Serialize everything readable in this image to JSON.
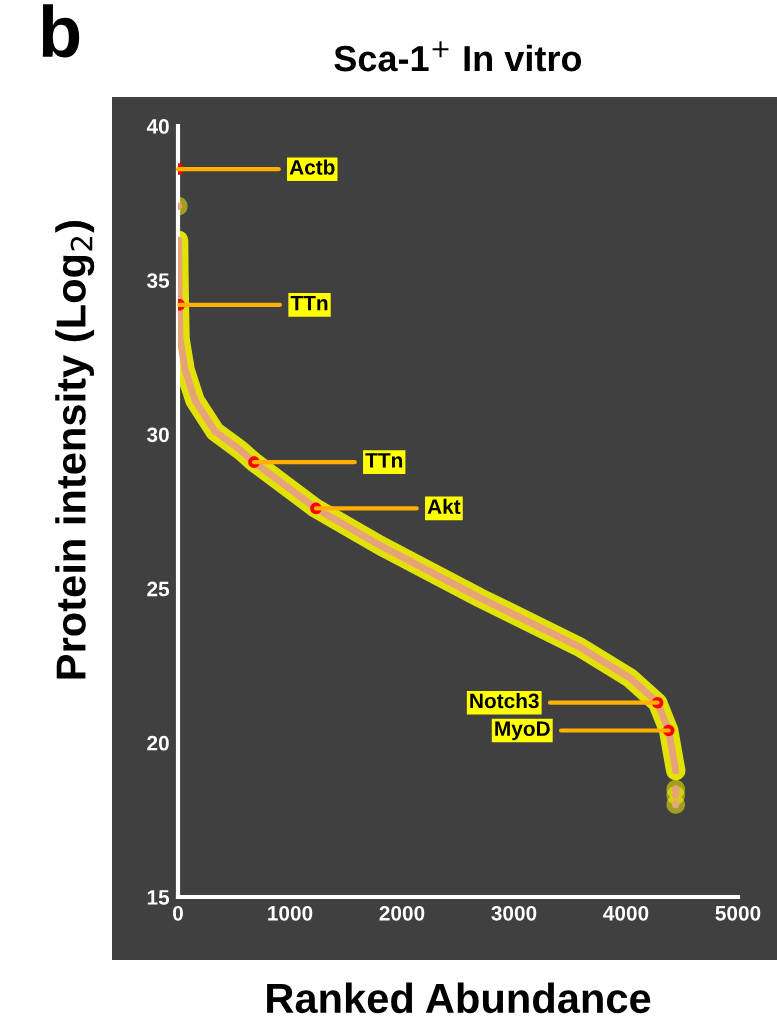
{
  "chart_data": {
    "type": "line",
    "title": "Sca-1$^{+}$ In vitro",
    "xlabel": "Ranked Abundance",
    "ylabel": "Protein intensity (Log$_{2}$)",
    "series": [
      {
        "color": "#e8a27a",
        "x": [
          5,
          8,
          12,
          18,
          63,
          152,
          330,
          554,
          679,
          1232,
          1804,
          2696,
          3589,
          4036,
          4282,
          4381,
          4444
        ],
        "values": [
          36.3,
          35.2,
          34.2,
          33.1,
          32.1,
          31.1,
          30.1,
          29.5,
          29.1,
          27.6,
          26.4,
          24.7,
          23.1,
          22.1,
          21.3,
          20.4,
          19.1
        ]
      },
      {
        "type": "scatter",
        "color": "#e8a27a",
        "x": [
          3,
          4444,
          4444,
          4444
        ],
        "values": [
          37.4,
          18.5,
          18.3,
          18.0
        ]
      },
      {
        "type": "scatter",
        "color": "#ff0000",
        "x": [
          0,
          12,
          679,
          1232,
          4282,
          4381
        ],
        "values": [
          38.6,
          34.2,
          29.1,
          27.6,
          21.3,
          20.4
        ]
      }
    ],
    "annotations": [
      "b",
      {
        "text": "Actb",
        "x": 0,
        "y": 38.6
      },
      {
        "text": "TTn",
        "x": 12,
        "y": 34.2
      },
      {
        "text": "TTn",
        "x": 679,
        "y": 29.1
      },
      {
        "text": "Akt",
        "x": 1232,
        "y": 27.6
      },
      {
        "text": "Notch3",
        "x": 4282,
        "y": 21.3
      },
      {
        "text": "MyoD",
        "x": 4381,
        "y": 20.4
      }
    ],
    "xlim": [
      0,
      5000
    ],
    "xticks": [
      0,
      1000,
      2000,
      3000,
      4000,
      5000
    ],
    "ylim": [
      15,
      40
    ],
    "yticks": [
      15,
      20,
      25,
      30,
      35,
      40
    ],
    "grid": false
  }
}
